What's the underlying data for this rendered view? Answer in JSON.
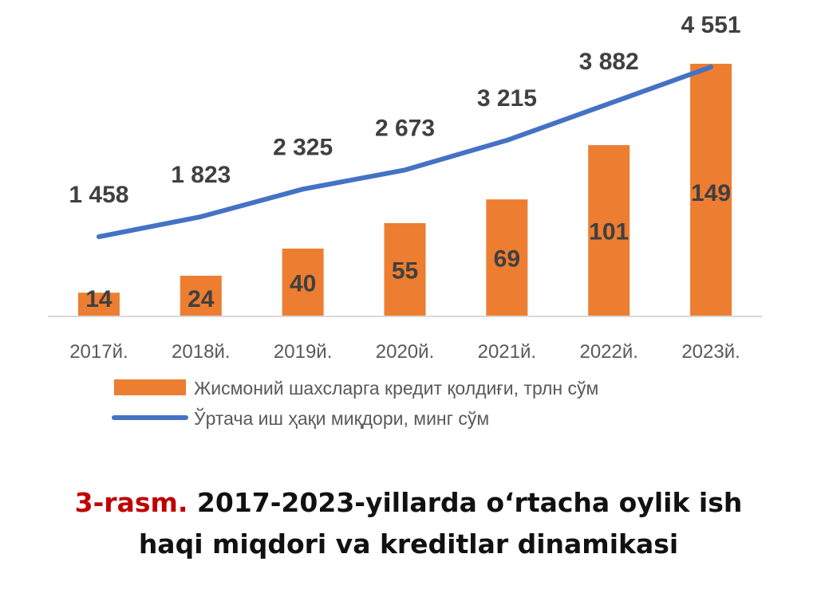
{
  "chart_data": {
    "type": "bar",
    "categories": [
      "2017й.",
      "2018й.",
      "2019й.",
      "2020й.",
      "2021й.",
      "2022й.",
      "2023й."
    ],
    "series": [
      {
        "name": "Жисмоний шахсларга кредит қолдиғи, трлн сўм",
        "type": "bar",
        "values": [
          14,
          24,
          40,
          55,
          69,
          101,
          149
        ],
        "labels": [
          "14",
          "24",
          "40",
          "55",
          "69",
          "101",
          "149"
        ],
        "color": "#ed7d31"
      },
      {
        "name": "Ўртача иш ҳақи миқдори, минг сўм",
        "type": "line",
        "values": [
          1458,
          1823,
          2325,
          2673,
          3215,
          3882,
          4551
        ],
        "labels": [
          "1 458",
          "1 823",
          "2 325",
          "2 673",
          "3 215",
          "3 882",
          "4 551"
        ],
        "color": "#4472c4"
      }
    ],
    "legend_position": "bottom",
    "grid": false
  },
  "caption": {
    "figure_number": "3-rasm.",
    "line1": "2017-2023-yillarda o‘rtacha oylik ish",
    "line2": "haqi miqdori va kreditlar dinamikasi"
  }
}
